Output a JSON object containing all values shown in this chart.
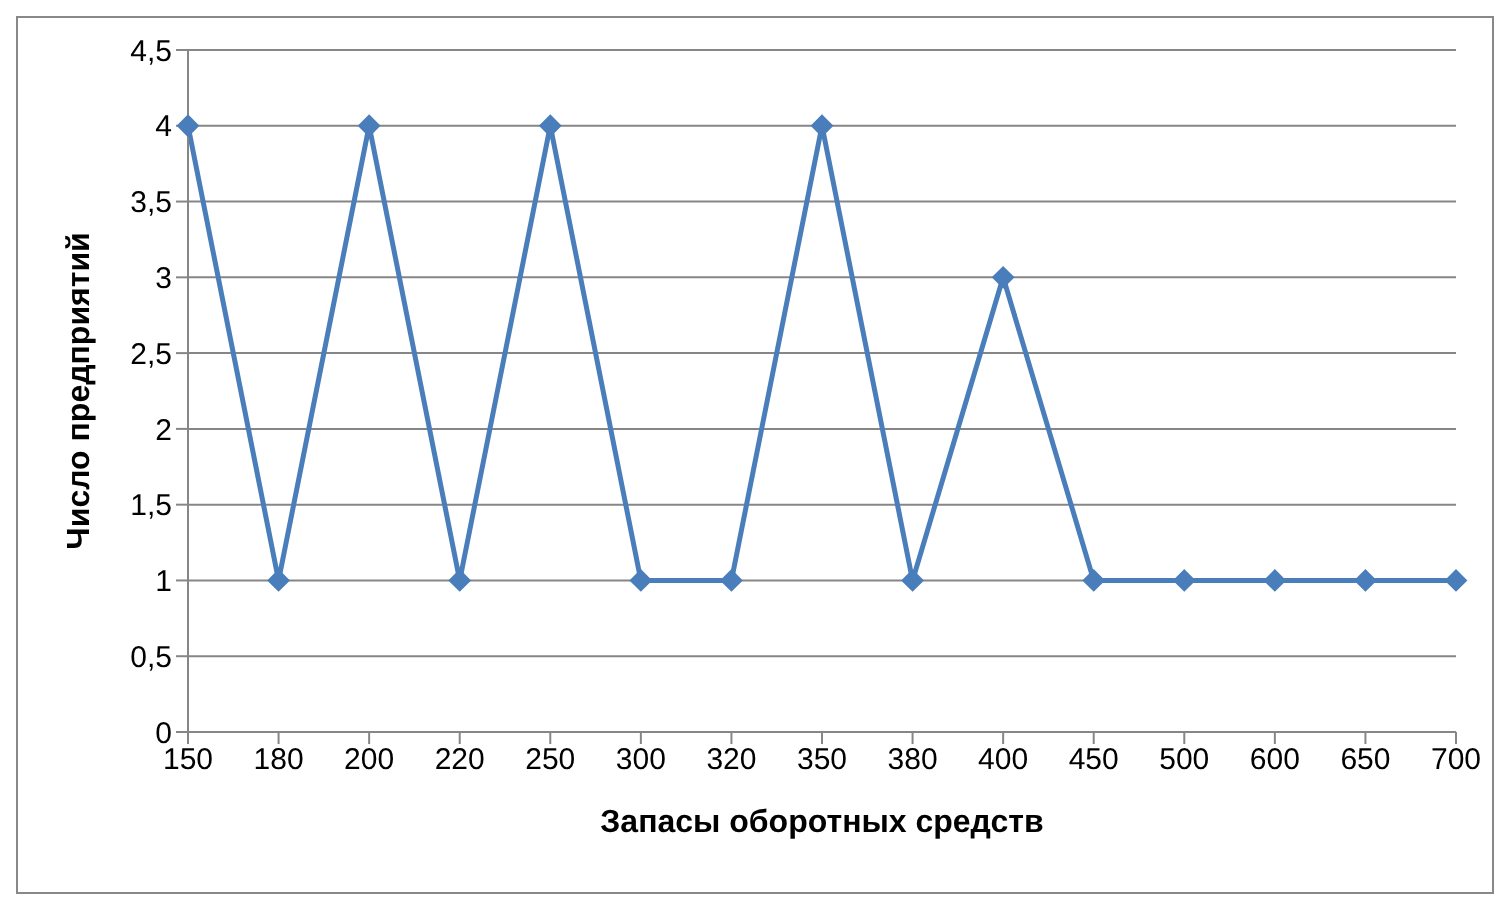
{
  "chart_data": {
    "type": "line",
    "xlabel": "Запасы оборотных средств",
    "ylabel": "Число предприятий",
    "categories": [
      "150",
      "180",
      "200",
      "220",
      "250",
      "300",
      "320",
      "350",
      "380",
      "400",
      "450",
      "500",
      "600",
      "650",
      "700"
    ],
    "series": [
      {
        "color": "#4a7ebb",
        "values": [
          4,
          1,
          4,
          1,
          4,
          1,
          1,
          4,
          1,
          3,
          1,
          1,
          1,
          1,
          1
        ]
      }
    ],
    "ylim": [
      0,
      4.5
    ],
    "yticks": [
      0,
      {
        "value": 0.5,
        "label": "0,5"
      },
      1,
      {
        "value": 1.5,
        "label": "1,5"
      },
      2,
      {
        "value": 2.5,
        "label": "2,5"
      },
      3,
      {
        "value": 3.5,
        "label": "3,5"
      },
      4,
      {
        "value": 4.5,
        "label": "4,5"
      }
    ],
    "grid": "y",
    "legend": false,
    "marker": "diamond",
    "line_style": "solid"
  }
}
